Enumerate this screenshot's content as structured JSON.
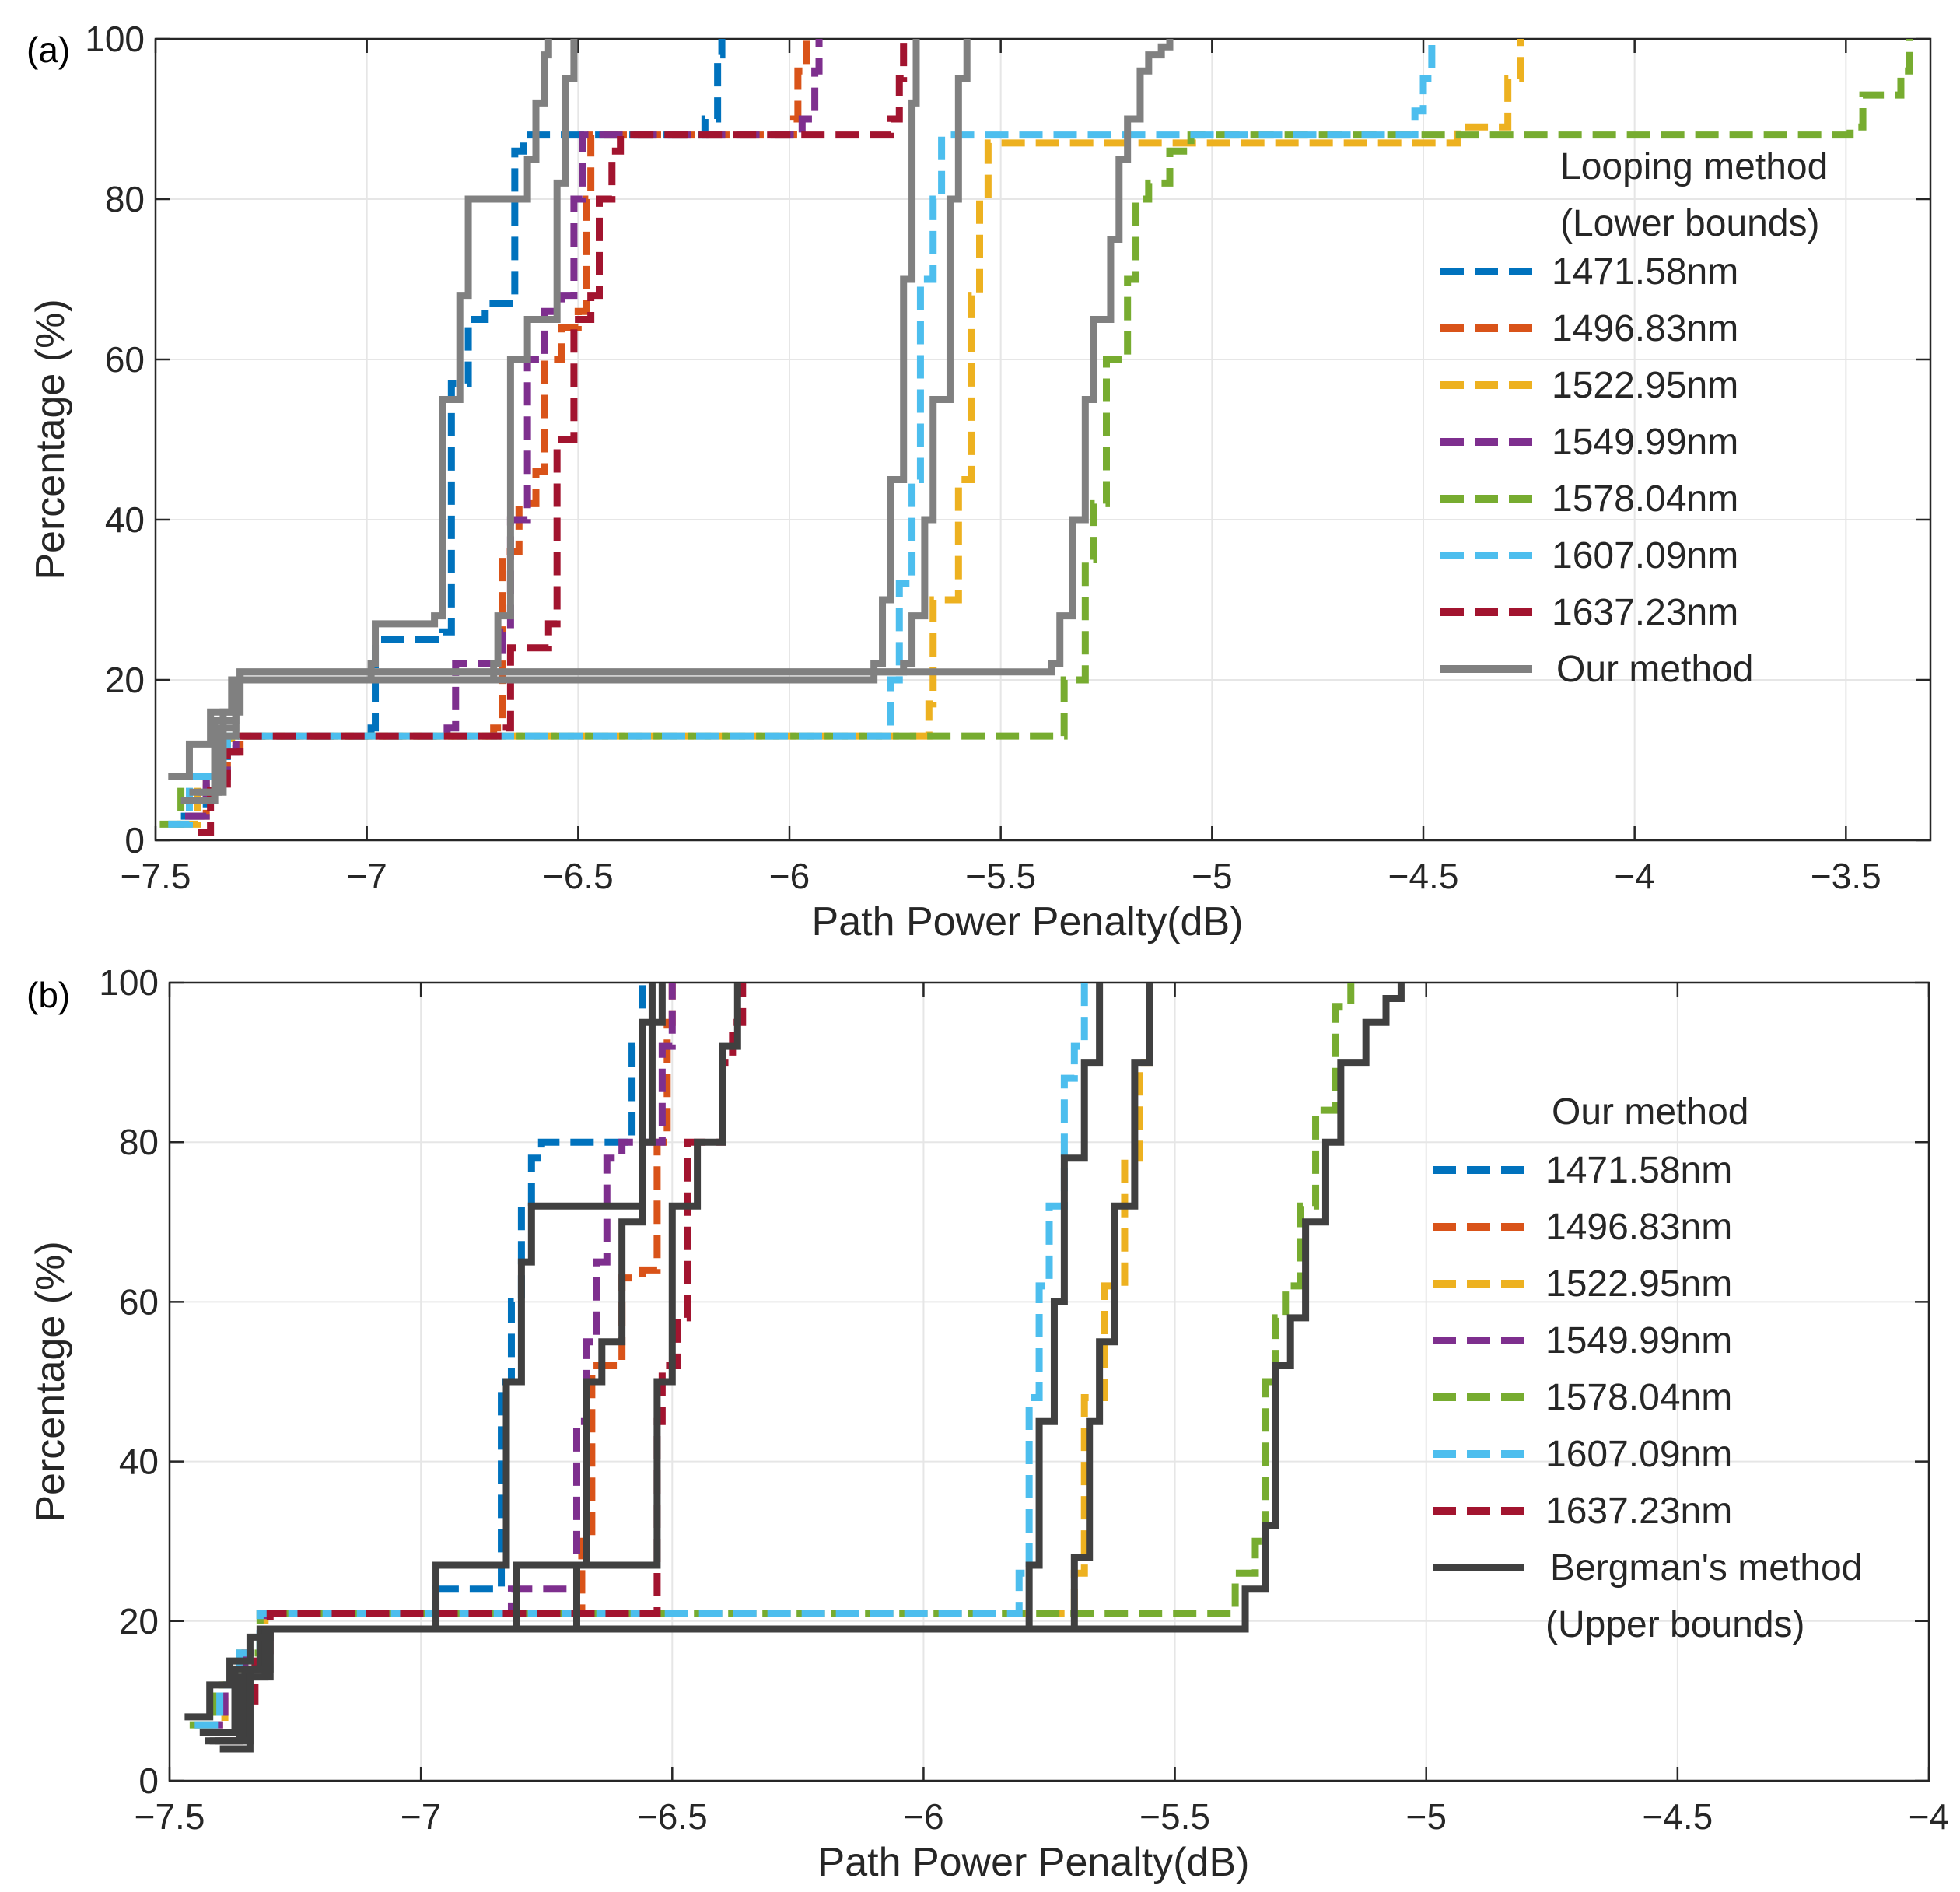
{
  "chart_data": [
    {
      "panel_label": "(a)",
      "type": "line",
      "xlabel": "Path Power Penalty(dB)",
      "ylabel": "Percentage (%)",
      "xlim": [
        -7.5,
        -3.3
      ],
      "ylim": [
        0,
        100
      ],
      "xticks": [
        -7.5,
        -7,
        -6.5,
        -6,
        -5.5,
        -5,
        -4.5,
        -4,
        -3.5
      ],
      "xtick_labels": [
        "−7.5",
        "−7",
        "−6.5",
        "−6",
        "−5.5",
        "−5",
        "−4.5",
        "−4",
        "−3.5"
      ],
      "yticks": [
        0,
        20,
        40,
        60,
        80,
        100
      ],
      "ytick_labels": [
        "0",
        "20",
        "40",
        "60",
        "80",
        "100"
      ],
      "grid": true,
      "legend_title": [
        "Looping method",
        "(Lower bounds)"
      ],
      "legend_position": "right",
      "series": [
        {
          "name": "1471.58nm",
          "color": "#0072BD",
          "style": "dashed",
          "x": [
            -7.44,
            -7.38,
            -7.33,
            -7.31,
            -6.99,
            -6.98,
            -6.82,
            -6.8,
            -6.76,
            -6.72,
            -6.66,
            -6.65,
            -6.63,
            -6.2,
            -6.17,
            -6.16
          ],
          "y": [
            3,
            8,
            11,
            13,
            14,
            25,
            26,
            57,
            65,
            67,
            67,
            86,
            88,
            90,
            98,
            100
          ]
        },
        {
          "name": "1496.83nm",
          "color": "#D95319",
          "style": "dashed",
          "x": [
            -7.42,
            -7.38,
            -7.33,
            -7.3,
            -6.7,
            -6.68,
            -6.64,
            -6.6,
            -6.58,
            -6.54,
            -6.5,
            -6.48,
            -6.47,
            -5.99,
            -5.98,
            -5.96
          ],
          "y": [
            3,
            8,
            11,
            13,
            14,
            36,
            42,
            46,
            60,
            64,
            66,
            80,
            88,
            90,
            96,
            100
          ]
        },
        {
          "name": "1522.95nm",
          "color": "#EDB120",
          "style": "dashed",
          "x": [
            -7.45,
            -7.4,
            -7.34,
            -7.32,
            -5.7,
            -5.67,
            -5.66,
            -5.6,
            -5.57,
            -5.55,
            -5.53,
            -4.42,
            -4.3,
            -4.27
          ],
          "y": [
            2,
            8,
            12,
            13,
            13,
            17,
            30,
            45,
            68,
            80,
            87,
            89,
            95,
            100
          ]
        },
        {
          "name": "1549.99nm",
          "color": "#7E2F8E",
          "style": "dashed",
          "x": [
            -7.43,
            -7.38,
            -7.33,
            -7.31,
            -6.81,
            -6.79,
            -6.68,
            -6.66,
            -6.62,
            -6.58,
            -6.54,
            -6.51,
            -6.49,
            -5.97,
            -5.94,
            -5.93
          ],
          "y": [
            3,
            8,
            11,
            13,
            14,
            22,
            26,
            40,
            60,
            66,
            68,
            80,
            88,
            90,
            96,
            100
          ]
        },
        {
          "name": "1578.04nm",
          "color": "#77AC30",
          "style": "dashed",
          "x": [
            -7.49,
            -7.44,
            -7.36,
            -7.33,
            -5.38,
            -5.35,
            -5.3,
            -5.28,
            -5.25,
            -5.2,
            -5.18,
            -5.15,
            -5.1,
            -5.05,
            -3.49,
            -3.46,
            -3.37,
            -3.35
          ],
          "y": [
            2,
            8,
            12,
            13,
            13,
            20,
            35,
            42,
            60,
            70,
            80,
            82,
            86,
            88,
            89,
            93,
            96,
            100
          ]
        },
        {
          "name": "1607.09nm",
          "color": "#4DBEEE",
          "style": "dashed",
          "x": [
            -7.47,
            -7.42,
            -7.35,
            -7.33,
            -5.78,
            -5.76,
            -5.74,
            -5.71,
            -5.69,
            -5.66,
            -5.64,
            -4.52,
            -4.5,
            -4.48
          ],
          "y": [
            2,
            8,
            12,
            13,
            13,
            20,
            32,
            45,
            70,
            80,
            88,
            91,
            95,
            100
          ]
        },
        {
          "name": "1637.23nm",
          "color": "#A2142F",
          "style": "dashed",
          "x": [
            -7.4,
            -7.37,
            -7.33,
            -7.3,
            -6.67,
            -6.66,
            -6.57,
            -6.55,
            -6.51,
            -6.47,
            -6.45,
            -6.42,
            -6.4,
            -5.76,
            -5.74,
            -5.73
          ],
          "y": [
            1,
            7,
            11,
            13,
            14,
            24,
            27,
            50,
            65,
            68,
            80,
            86,
            88,
            90,
            95,
            100
          ]
        },
        {
          "name": "Our method",
          "color": "#808080",
          "style": "solid",
          "x": [
            -7.47,
            -7.42,
            -7.37,
            -7.32,
            -7.3,
            -5.38,
            -5.36,
            -5.33,
            -5.3,
            -5.28,
            -5.24,
            -5.22,
            -5.2,
            -5.17,
            -5.15,
            -5.12,
            -5.1
          ],
          "y": [
            8,
            12,
            16,
            20,
            21,
            22,
            28,
            40,
            55,
            65,
            75,
            85,
            90,
            96,
            98,
            99,
            100
          ]
        }
      ],
      "extra_gray_curves_legend_shared": [
        {
          "x": [
            -7.42,
            -7.35,
            -7.31,
            -6.99,
            -6.98,
            -6.84,
            -6.82,
            -6.78,
            -6.76,
            -6.62,
            -6.6,
            -6.58,
            -6.57
          ],
          "y": [
            6,
            14,
            20,
            22,
            27,
            28,
            55,
            68,
            80,
            85,
            92,
            98,
            100
          ]
        },
        {
          "x": [
            -7.43,
            -7.36,
            -7.31,
            -6.7,
            -6.69,
            -6.66,
            -6.62,
            -6.55,
            -6.53,
            -6.51
          ],
          "y": [
            5,
            13,
            20,
            22,
            28,
            60,
            65,
            82,
            95,
            100
          ]
        },
        {
          "x": [
            -7.44,
            -7.36,
            -7.31,
            -5.8,
            -5.78,
            -5.76,
            -5.73,
            -5.71,
            -5.7
          ],
          "y": [
            5,
            15,
            20,
            22,
            30,
            45,
            70,
            92,
            100
          ]
        },
        {
          "x": [
            -7.4,
            -7.34,
            -7.3,
            -5.73,
            -5.71,
            -5.68,
            -5.66,
            -5.62,
            -5.6,
            -5.58
          ],
          "y": [
            6,
            16,
            21,
            22,
            28,
            40,
            55,
            80,
            95,
            100
          ]
        }
      ]
    },
    {
      "panel_label": "(b)",
      "type": "line",
      "xlabel": "Path Power Penalty(dB)",
      "ylabel": "Percentage (%)",
      "xlim": [
        -7.5,
        -4
      ],
      "ylim": [
        0,
        100
      ],
      "xticks": [
        -7.5,
        -7,
        -6.5,
        -6,
        -5.5,
        -5,
        -4.5,
        -4
      ],
      "xtick_labels": [
        "−7.5",
        "−7",
        "−6.5",
        "−6",
        "−5.5",
        "−5",
        "−4.5",
        "−4"
      ],
      "yticks": [
        0,
        20,
        40,
        60,
        80,
        100
      ],
      "ytick_labels": [
        "0",
        "20",
        "40",
        "60",
        "80",
        "100"
      ],
      "grid": true,
      "legend_title": [
        "Our method"
      ],
      "legend_position": "right",
      "series": [
        {
          "name": "1471.58nm",
          "color": "#0072BD",
          "style": "dashed",
          "x": [
            -7.45,
            -7.4,
            -7.36,
            -7.32,
            -6.98,
            -6.97,
            -6.84,
            -6.82,
            -6.8,
            -6.78,
            -6.76,
            -6.6,
            -6.58,
            -6.56
          ],
          "y": [
            7,
            12,
            16,
            21,
            21,
            24,
            50,
            60,
            72,
            78,
            80,
            80,
            92,
            100
          ]
        },
        {
          "name": "1496.83nm",
          "color": "#D95319",
          "style": "dashed",
          "x": [
            -7.44,
            -7.39,
            -7.35,
            -7.31,
            -6.7,
            -6.68,
            -6.66,
            -6.6,
            -6.56,
            -6.53,
            -6.51,
            -6.5
          ],
          "y": [
            7,
            12,
            16,
            21,
            21,
            30,
            52,
            63,
            64,
            80,
            95,
            100
          ]
        },
        {
          "name": "1522.95nm",
          "color": "#EDB120",
          "style": "dashed",
          "x": [
            -7.45,
            -7.39,
            -7.35,
            -7.31,
            -5.72,
            -5.7,
            -5.68,
            -5.64,
            -5.6,
            -5.57,
            -5.55
          ],
          "y": [
            7,
            12,
            16,
            21,
            21,
            26,
            48,
            62,
            78,
            90,
            100
          ]
        },
        {
          "name": "1549.99nm",
          "color": "#7E2F8E",
          "style": "dashed",
          "x": [
            -7.44,
            -7.39,
            -7.35,
            -7.31,
            -6.83,
            -6.82,
            -6.69,
            -6.67,
            -6.65,
            -6.63,
            -6.6,
            -6.55,
            -6.52,
            -6.5
          ],
          "y": [
            7,
            12,
            16,
            21,
            21,
            24,
            45,
            55,
            65,
            78,
            80,
            80,
            92,
            100
          ]
        },
        {
          "name": "1578.04nm",
          "color": "#77AC30",
          "style": "dashed",
          "x": [
            -7.46,
            -7.41,
            -7.36,
            -7.32,
            -5.4,
            -5.38,
            -5.34,
            -5.32,
            -5.3,
            -5.28,
            -5.25,
            -5.22,
            -5.18,
            -5.15
          ],
          "y": [
            7,
            12,
            16,
            21,
            21,
            26,
            30,
            50,
            58,
            62,
            72,
            84,
            97,
            100
          ]
        },
        {
          "name": "1607.09nm",
          "color": "#4DBEEE",
          "style": "dashed",
          "x": [
            -7.45,
            -7.4,
            -7.36,
            -7.32,
            -5.82,
            -5.81,
            -5.79,
            -5.77,
            -5.75,
            -5.72,
            -5.7,
            -5.68
          ],
          "y": [
            7,
            12,
            16,
            21,
            21,
            26,
            48,
            62,
            72,
            88,
            92,
            100
          ]
        },
        {
          "name": "1637.23nm",
          "color": "#A2142F",
          "style": "dashed",
          "x": [
            -7.4,
            -7.36,
            -7.33,
            -7.3,
            -6.54,
            -6.53,
            -6.52,
            -6.49,
            -6.47,
            -6.42,
            -6.4,
            -6.38,
            -6.36
          ],
          "y": [
            5,
            10,
            15,
            21,
            21,
            45,
            52,
            58,
            80,
            80,
            90,
            95,
            100
          ]
        },
        {
          "name": "Bergman's method",
          "color": "#404040",
          "style": "solid",
          "x": [
            -7.47,
            -7.42,
            -7.38,
            -7.34,
            -7.3,
            -5.38,
            -5.36,
            -5.32,
            -5.3,
            -5.27,
            -5.24,
            -5.2,
            -5.17,
            -5.12,
            -5.08,
            -5.05
          ],
          "y": [
            8,
            12,
            15,
            18,
            19,
            19,
            24,
            32,
            52,
            58,
            70,
            80,
            90,
            95,
            98,
            100
          ]
        }
      ],
      "extra_black_curves_legend_shared": [
        {
          "x": [
            -7.44,
            -7.37,
            -7.32,
            -6.98,
            -6.97,
            -6.85,
            -6.83,
            -6.8,
            -6.78,
            -6.58,
            -6.56,
            -6.54
          ],
          "y": [
            6,
            14,
            19,
            19,
            27,
            27,
            50,
            65,
            72,
            72,
            95,
            100
          ]
        },
        {
          "x": [
            -7.43,
            -7.36,
            -7.31,
            -6.7,
            -6.69,
            -6.67,
            -6.64,
            -6.6,
            -6.56,
            -6.54,
            -6.52
          ],
          "y": [
            5,
            13,
            19,
            19,
            27,
            50,
            55,
            70,
            80,
            95,
            100
          ]
        },
        {
          "x": [
            -7.42,
            -7.35,
            -7.31,
            -5.81,
            -5.79,
            -5.77,
            -5.74,
            -5.72,
            -5.68,
            -5.65
          ],
          "y": [
            5,
            14,
            19,
            19,
            27,
            45,
            60,
            78,
            90,
            100
          ]
        },
        {
          "x": [
            -7.41,
            -7.34,
            -7.3,
            -5.72,
            -5.7,
            -5.67,
            -5.65,
            -5.62,
            -5.58,
            -5.55
          ],
          "y": [
            5,
            14,
            19,
            19,
            28,
            45,
            55,
            72,
            90,
            100
          ]
        },
        {
          "x": [
            -7.4,
            -7.34,
            -7.3,
            -6.82,
            -6.81,
            -6.55,
            -6.53,
            -6.5,
            -6.45,
            -6.4,
            -6.37
          ],
          "y": [
            4,
            13,
            19,
            19,
            27,
            27,
            50,
            72,
            80,
            92,
            100
          ]
        }
      ]
    }
  ]
}
